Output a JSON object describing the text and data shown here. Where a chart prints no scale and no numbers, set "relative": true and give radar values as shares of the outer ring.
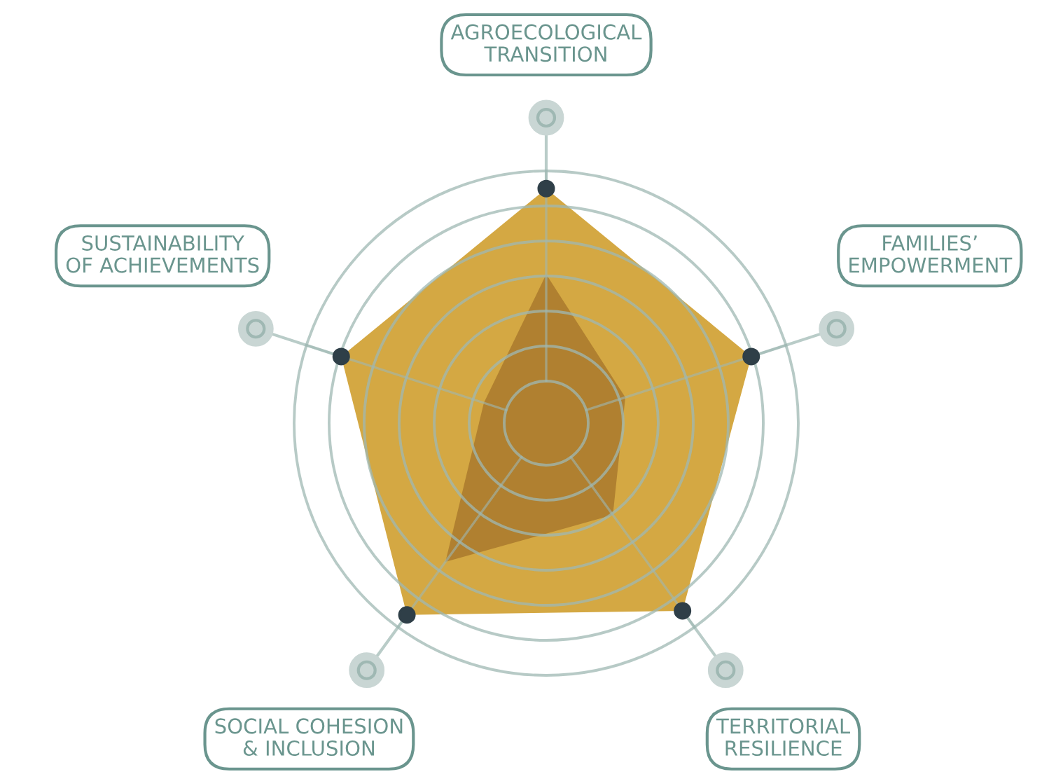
{
  "chart_data": {
    "type": "radar",
    "relative": true,
    "grid": true,
    "categories": [
      "AGROECOLOGICAL\nTRANSITION",
      "FAMILIES’\nEMPOWERMENT",
      "TERRITORIAL\nRESILIENCE",
      "SOCIAL COHESION\n& INCLUSION",
      "SUSTAINABILITY\nOF ACHIEVEMENTS"
    ],
    "series": [
      {
        "color": "#d4a843",
        "marker": "circle",
        "values": [
          0.93,
          0.855,
          0.92,
          0.94,
          0.855
        ]
      },
      {
        "color": "#b08030",
        "marker": "none",
        "values": [
          0.59,
          0.33,
          0.45,
          0.68,
          0.26
        ]
      }
    ]
  }
}
